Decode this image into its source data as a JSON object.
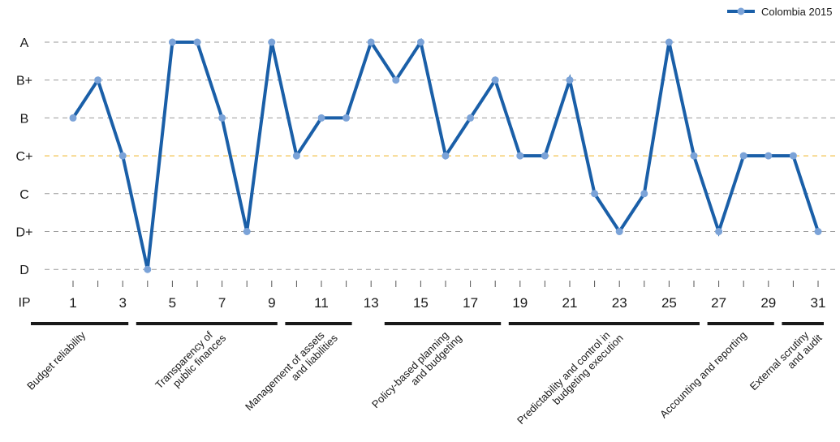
{
  "chart_data": {
    "type": "line",
    "title": "",
    "ylabel": "",
    "xlabel": "",
    "x_axis_name": "IP",
    "y_categories": [
      "D",
      "D+",
      "C",
      "C+",
      "B",
      "B+",
      "A"
    ],
    "x": [
      1,
      2,
      3,
      4,
      5,
      6,
      7,
      8,
      9,
      10,
      11,
      12,
      13,
      14,
      15,
      16,
      17,
      18,
      19,
      20,
      21,
      22,
      23,
      24,
      25,
      26,
      27,
      28,
      29,
      30,
      31
    ],
    "x_tick_labels": [
      "1",
      "3",
      "5",
      "7",
      "9",
      "11",
      "13",
      "15",
      "17",
      "19",
      "21",
      "23",
      "25",
      "27",
      "29",
      "31"
    ],
    "x_tick_values": [
      1,
      3,
      5,
      7,
      9,
      11,
      13,
      15,
      17,
      19,
      21,
      23,
      25,
      27,
      29,
      31
    ],
    "series": [
      {
        "name": "Colombia 2015",
        "color": "#1a5fa8",
        "marker_color": "#7ba3d8",
        "values": [
          "B",
          "B+",
          "C+",
          "D",
          "A",
          "A",
          "B",
          "D+",
          "A",
          "C+",
          "B",
          "B",
          "A",
          "B+",
          "A",
          "C+",
          "B",
          "B+",
          "C+",
          "C+",
          "B+",
          "C",
          "D+",
          "C",
          "A",
          "C+",
          "D+",
          "C+",
          "C+",
          "C+",
          "D+"
        ]
      }
    ],
    "highlight_line": {
      "grade": "C+",
      "color": "#f0b323"
    },
    "groups": [
      {
        "label": [
          "Budget reliability"
        ],
        "start": 1,
        "end": 3
      },
      {
        "label": [
          "Transparency of",
          "public finances"
        ],
        "start": 4,
        "end": 9
      },
      {
        "label": [
          "Management of assets",
          "and liabilities"
        ],
        "start": 10,
        "end": 12
      },
      {
        "label": [
          "Policy-based planning",
          "and budgeting"
        ],
        "start": 14,
        "end": 18
      },
      {
        "label": [
          "Predictability and control in",
          "budgeting execution"
        ],
        "start": 19,
        "end": 26
      },
      {
        "label": [
          "Accounting and reporting"
        ],
        "start": 27,
        "end": 29
      },
      {
        "label": [
          "External scrutiny",
          "and audit"
        ],
        "start": 30,
        "end": 31
      }
    ],
    "legend": {
      "position": "top-right",
      "label": "Colombia 2015"
    },
    "grid": true
  }
}
